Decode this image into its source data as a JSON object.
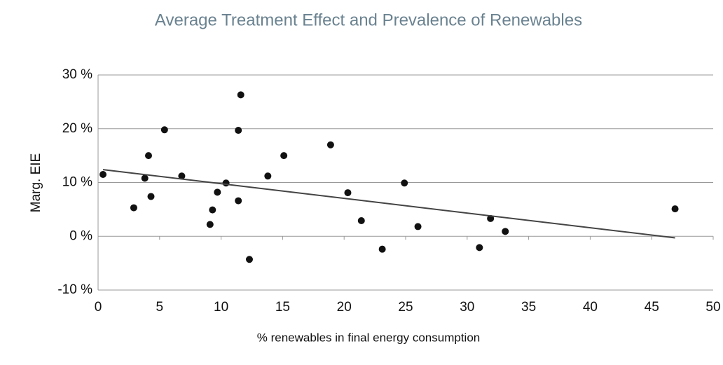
{
  "chart_data": {
    "type": "scatter",
    "title": "Average Treatment Effect and Prevalence of Renewables",
    "x_label": "% renewables in final energy consumption",
    "y_label": "Marg. EIE",
    "color": "#111111",
    "trend_color": "#444444",
    "grid": true,
    "xlim": [
      0,
      50
    ],
    "xticks": [
      0,
      5,
      10,
      15,
      20,
      25,
      30,
      35,
      40,
      45,
      50
    ],
    "ylim": [
      -10,
      30
    ],
    "yticks": [
      {
        "value": -10,
        "label": "-10 %"
      },
      {
        "value": 0,
        "label": "0 %"
      },
      {
        "value": 10,
        "label": "10 %"
      },
      {
        "value": 20,
        "label": "20 %"
      },
      {
        "value": 30,
        "label": "30 %"
      }
    ],
    "x": [
      0.4,
      2.9,
      3.8,
      4.1,
      4.3,
      5.4,
      6.8,
      9.1,
      9.3,
      9.7,
      10.4,
      11.6,
      11.4,
      11.4,
      12.3,
      13.8,
      15.1,
      18.9,
      20.3,
      21.4,
      23.1,
      24.9,
      26.0,
      31.0,
      31.9,
      33.1,
      46.9
    ],
    "values": [
      11.5,
      5.3,
      10.8,
      15,
      7.4,
      19.8,
      11.2,
      2.2,
      4.9,
      8.2,
      9.9,
      26.3,
      19.7,
      6.6,
      -4.3,
      11.2,
      15,
      17,
      8.1,
      2.9,
      -2.4,
      9.9,
      1.8,
      -2.1,
      3.3,
      0.9,
      5.1
    ],
    "trendline": {
      "x": [
        0.4,
        46.9
      ],
      "y": [
        12.4,
        -0.3
      ]
    }
  }
}
